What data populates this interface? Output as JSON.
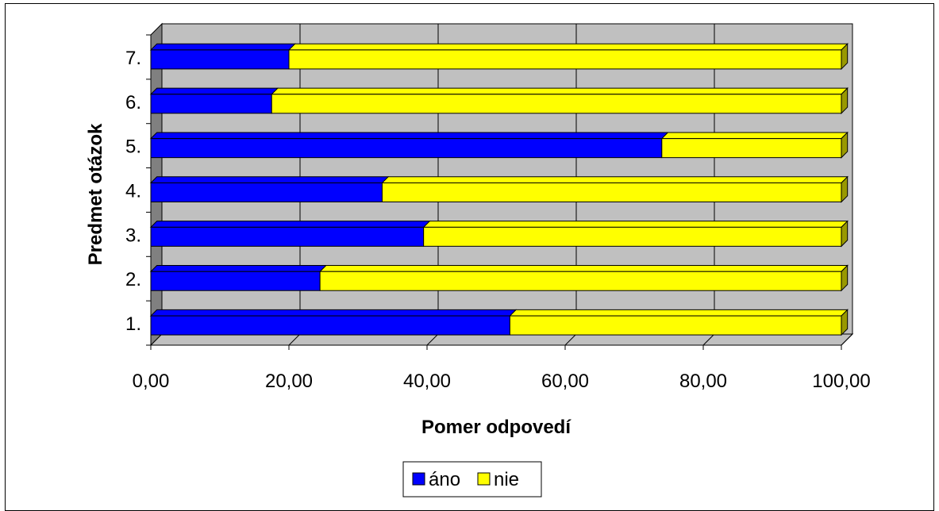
{
  "chart_data": {
    "type": "bar",
    "orientation": "horizontal",
    "stacked": true,
    "three_d": true,
    "categories": [
      "1.",
      "2.",
      "3.",
      "4.",
      "5.",
      "6.",
      "7."
    ],
    "series": [
      {
        "name": "áno",
        "color": "#0000FF",
        "values": [
          52.0,
          24.5,
          39.5,
          33.5,
          74.0,
          17.5,
          20.0
        ]
      },
      {
        "name": "nie",
        "color": "#FFFF00",
        "values": [
          48.0,
          75.5,
          60.5,
          66.5,
          26.0,
          82.5,
          80.0
        ]
      }
    ],
    "xlabel": "Pomer odpovedí",
    "ylabel": "Predmet otázok",
    "xlim": [
      0,
      100
    ],
    "x_ticks": [
      "0,00",
      "20,00",
      "40,00",
      "60,00",
      "80,00",
      "100,00"
    ],
    "grid": "vertical",
    "legend_position": "bottom",
    "wall_color": "#C0C0C0",
    "side_wall_color": "#808080"
  }
}
